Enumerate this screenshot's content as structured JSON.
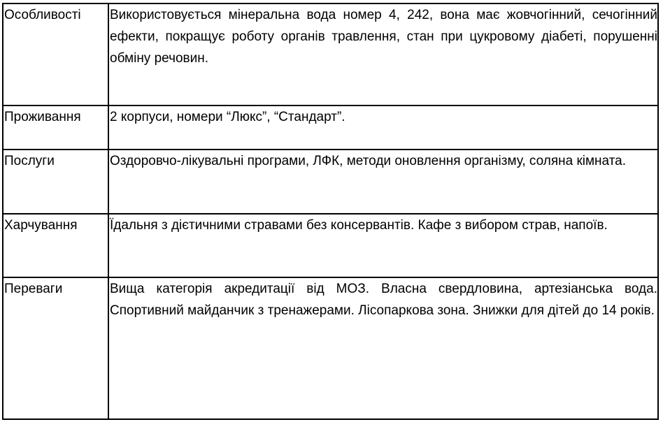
{
  "rows": [
    {
      "label": "Особливості",
      "text": "Використовується мінеральна вода номер 4, 242, вона має жовчогінний, сечогінний ефекти, покращує роботу органів травлення, стан при цукровому діабеті, порушенні обміну речовин."
    },
    {
      "label": "Проживання",
      "text": "2 корпуси, номери “Люкс”, “Стандарт”."
    },
    {
      "label": "Послуги",
      "text": "Оздоровчо-лікувальні програми, ЛФК, методи оновлення організму, соляна кімната."
    },
    {
      "label": "Харчування",
      "text": "Їдальня з дієтичними стравами без консервантів. Кафе з вибором страв, напоїв."
    },
    {
      "label": "Переваги",
      "text": "Вища категорія акредитації від МОЗ. Власна свердловина, артезіанська вода. Спортивний майданчик з тренажерами. Лісопаркова зона. Знижки для дітей до 14 років."
    }
  ]
}
